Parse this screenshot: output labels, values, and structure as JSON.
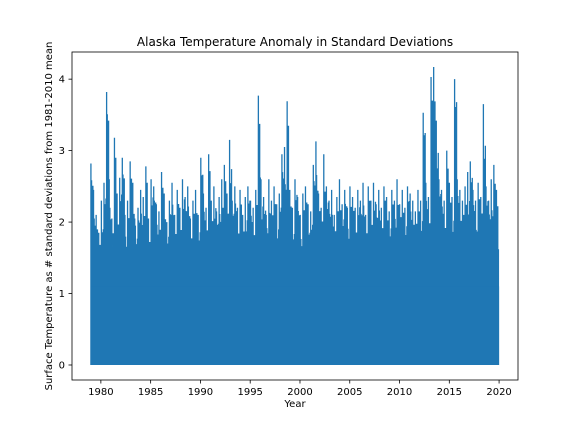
{
  "chart_data": {
    "type": "line",
    "title": "Alaska Temperature Anomaly in Standard Deviations",
    "xlabel": "Year",
    "ylabel": "Surface Temperature as # standard deviations from 1981-2010 mean",
    "xlim": [
      1977.1,
      2021.9
    ],
    "ylim": [
      -0.21,
      4.38
    ],
    "xticks": [
      1980,
      1985,
      1990,
      1995,
      2000,
      2005,
      2010,
      2015,
      2020
    ],
    "yticks": [
      0,
      1,
      2,
      3,
      4
    ],
    "grid": false,
    "legend": "none",
    "series_color": "#1f77b4",
    "series": [
      {
        "x_start": 1979.0,
        "x_end": 2020.0,
        "bin_size_years": 0.1,
        "daily_min": 0.0,
        "typical_peaks": [
          2.82,
          2.45,
          2.1,
          1.85,
          2.3,
          2.55,
          3.82,
          2.6,
          2.05,
          3.18,
          2.4,
          2.62,
          2.9,
          2.1,
          2.3,
          2.85,
          2.55,
          1.95,
          2.2,
          2.45,
          2.35,
          2.78,
          2.05,
          2.6,
          2.5,
          2.25,
          2.15,
          2.7,
          2.4,
          2.0,
          2.3,
          2.55,
          2.1,
          2.45,
          2.2,
          2.6,
          2.35,
          2.5,
          2.05,
          2.3,
          2.45,
          2.1,
          2.9,
          2.4,
          2.2,
          2.95,
          2.3,
          2.5,
          2.15,
          2.35,
          2.6,
          2.8,
          2.4,
          3.15,
          2.3,
          2.5,
          2.2,
          2.45,
          2.1,
          2.35,
          2.5,
          2.3,
          2.2,
          2.45,
          3.77,
          2.6,
          2.35,
          2.1,
          2.6,
          2.3,
          2.5,
          2.25,
          2.4,
          2.95,
          3.05,
          3.69,
          2.45,
          2.2,
          2.6,
          2.35,
          2.1,
          2.4,
          2.5,
          2.25,
          2.15,
          2.8,
          3.13,
          2.4,
          2.2,
          2.95,
          2.5,
          2.3,
          2.45,
          2.1,
          2.35,
          2.6,
          2.25,
          2.45,
          2.2,
          2.5,
          2.35,
          2.2,
          2.45,
          2.3,
          2.55,
          2.1,
          2.5,
          2.3,
          2.55,
          2.25,
          2.45,
          2.2,
          2.5,
          2.35,
          2.15,
          2.45,
          2.3,
          2.6,
          2.25,
          2.45,
          2.2,
          2.5,
          2.4,
          2.3,
          2.15,
          2.45,
          2.3,
          3.53,
          2.55,
          2.35,
          4.03,
          4.17,
          3.42,
          2.6,
          2.45,
          2.3,
          3.0,
          2.55,
          2.35,
          4.0,
          2.6,
          2.45,
          2.3,
          2.5,
          2.7,
          2.85,
          2.45,
          2.3,
          2.55,
          2.35,
          3.65,
          2.5,
          2.3,
          2.6,
          2.8,
          2.45
        ]
      }
    ]
  }
}
